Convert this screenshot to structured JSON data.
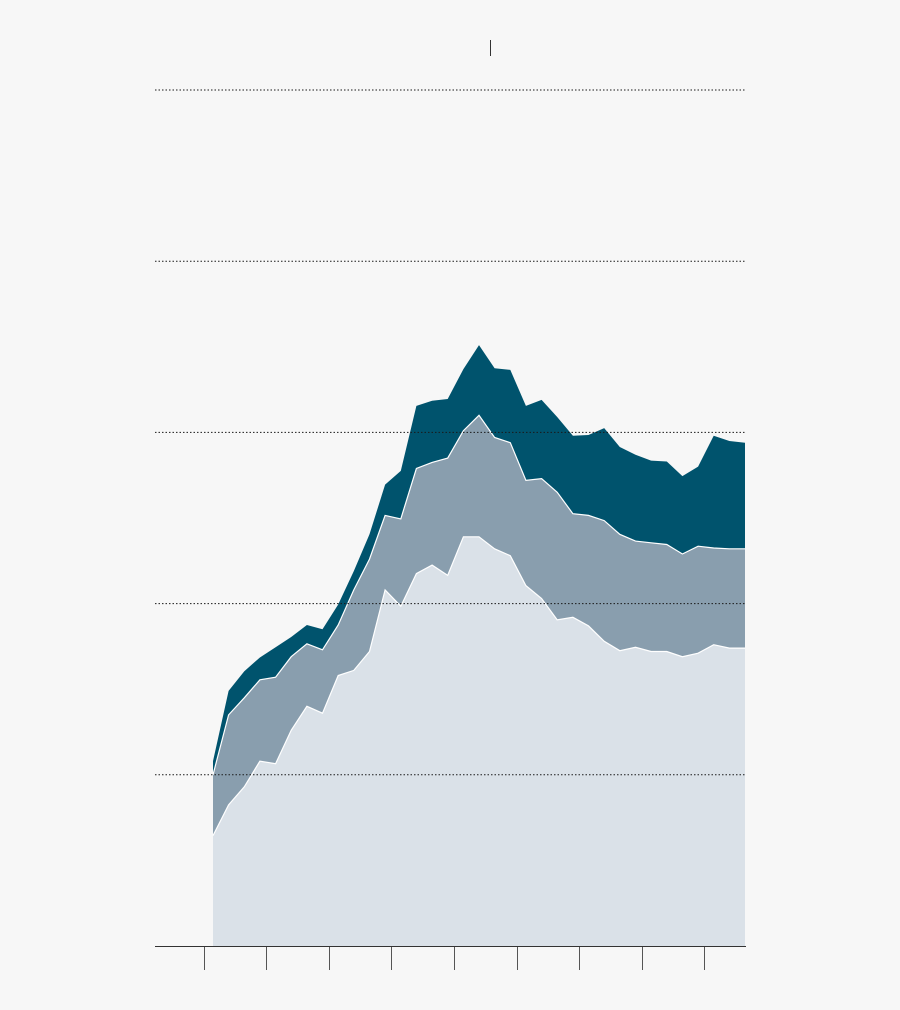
{
  "chart_data": {
    "type": "area",
    "stacked": true,
    "title": "",
    "xlabel": "",
    "ylabel": "",
    "ylim": [
      0,
      100
    ],
    "ytick_values": [
      20,
      40,
      60,
      80
    ],
    "grid": true,
    "grid_style": "dotted",
    "xlim": [
      0,
      34
    ],
    "xtick_values": [
      -0.6,
      3.4,
      7.4,
      11.4,
      15.4,
      19.4,
      23.4,
      27.4,
      31.4
    ],
    "marker_x": 17.7,
    "x": [
      0,
      1,
      2,
      3,
      4,
      5,
      6,
      7,
      8,
      9,
      10,
      11,
      12,
      13,
      14,
      15,
      16,
      17,
      18,
      19,
      20,
      21,
      22,
      23,
      24,
      25,
      26,
      27,
      28,
      29,
      30,
      31,
      32,
      33,
      34
    ],
    "series": [
      {
        "color": "#dae1e8",
        "values": [
          12.9,
          16.5,
          18.6,
          21.6,
          21.3,
          25.2,
          28.0,
          27.2,
          31.6,
          32.2,
          34.4,
          41.6,
          39.7,
          43.5,
          44.5,
          43.3,
          47.8,
          47.8,
          46.4,
          45.6,
          42.1,
          40.6,
          38.1,
          38.4,
          37.4,
          35.6,
          34.5,
          34.9,
          34.4,
          34.4,
          33.8,
          34.2,
          35.2,
          34.8,
          34.8
        ]
      },
      {
        "color": "#899eae",
        "values": [
          7.1,
          10.5,
          10.4,
          9.5,
          10.1,
          8.6,
          7.3,
          7.4,
          5.9,
          9.4,
          10.8,
          8.7,
          10.2,
          12.3,
          12.0,
          13.7,
          12.4,
          14.2,
          13.0,
          13.2,
          12.3,
          14.0,
          14.9,
          12.1,
          12.9,
          14.1,
          13.6,
          12.4,
          12.7,
          12.5,
          12.0,
          12.5,
          11.3,
          11.6,
          11.6
        ]
      },
      {
        "color": "#00536d",
        "values": [
          1.6,
          2.8,
          3.1,
          2.6,
          3.5,
          2.3,
          2.2,
          2.4,
          2.4,
          2.2,
          2.9,
          3.6,
          5.6,
          7.3,
          7.2,
          6.9,
          7.2,
          8.2,
          8.1,
          8.5,
          8.7,
          9.2,
          8.8,
          9.1,
          9.4,
          10.8,
          10.2,
          10.1,
          9.6,
          9.7,
          9.1,
          9.3,
          13.1,
          12.6,
          12.4
        ]
      }
    ]
  }
}
